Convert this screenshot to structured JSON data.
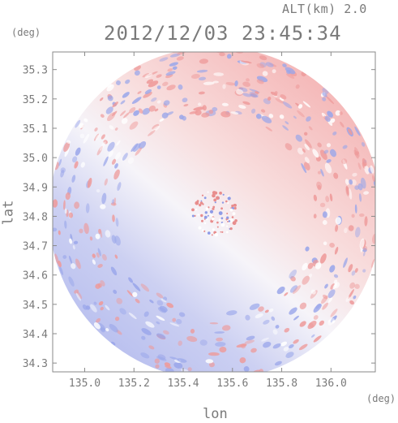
{
  "header": {
    "altitude_label": "ALT(km) 2.0",
    "datetime": "2012/12/03 23:45:34"
  },
  "chart_data": {
    "type": "heatmap",
    "title": "2012/12/03 23:45:34",
    "subtitle": "ALT(km) 2.0",
    "xlabel": "lon",
    "ylabel": "lat",
    "x_unit": "(deg)",
    "y_unit": "(deg)",
    "xlim": [
      134.87,
      136.18
    ],
    "ylim": [
      34.27,
      35.36
    ],
    "x_ticks": [
      135.0,
      135.2,
      135.4,
      135.6,
      135.8,
      136.0
    ],
    "x_tick_labels": [
      "135.0",
      "135.2",
      "135.4",
      "135.6",
      "135.8",
      "136.0"
    ],
    "y_ticks": [
      34.3,
      34.4,
      34.5,
      34.6,
      34.7,
      34.8,
      34.9,
      35.0,
      35.1,
      35.2,
      35.3
    ],
    "y_tick_labels": [
      "34.3",
      "34.4",
      "34.5",
      "34.6",
      "34.7",
      "34.8",
      "34.9",
      "35.0",
      "35.1",
      "35.2",
      "35.3"
    ],
    "radar_center": [
      135.53,
      34.81
    ],
    "colors": {
      "positive": "#f3a7a7",
      "negative": "#a9b2ec",
      "neutral": "#f4f4fb",
      "axis": "#8a8a8a"
    }
  }
}
